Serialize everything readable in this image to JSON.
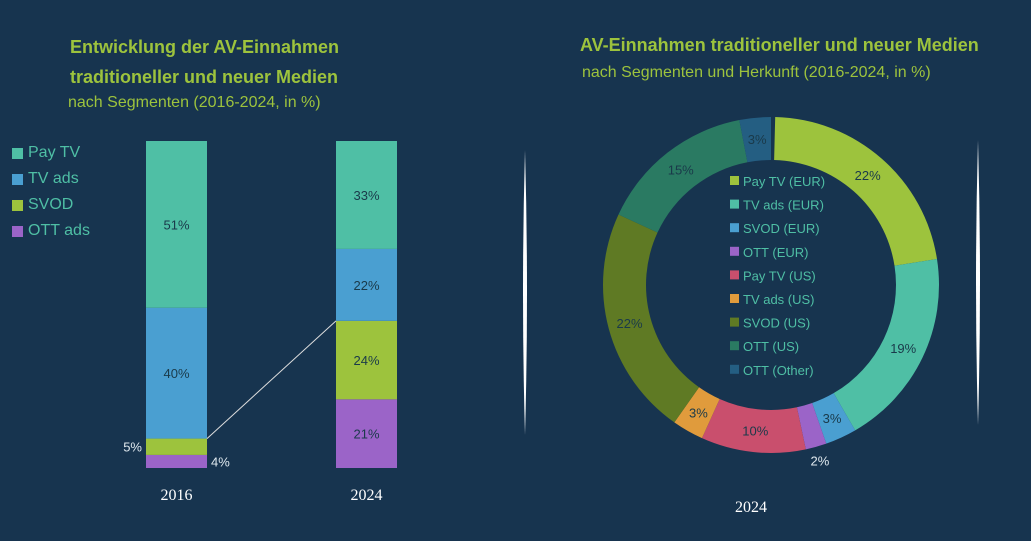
{
  "chart_data": [
    {
      "type": "bar",
      "stacked": true,
      "title": "Entwicklung der AV-Einnahmen traditioneller und neuer Medien",
      "subtitle": "nach Segmenten (2016-2024, in %)",
      "categories": [
        "2016",
        "2024"
      ],
      "series": [
        {
          "name": "OTT ads",
          "color": "#9b64c8",
          "values": [
            4,
            21
          ],
          "labels": [
            "4%",
            "21%"
          ]
        },
        {
          "name": "SVOD",
          "color": "#9dc33d",
          "values": [
            5,
            24
          ],
          "labels": [
            "5%",
            "24%"
          ]
        },
        {
          "name": "TV ads",
          "color": "#4a9fd1",
          "values": [
            40,
            22
          ],
          "labels": [
            "40%",
            "22%"
          ]
        },
        {
          "name": "Pay TV",
          "color": "#4fbfa5",
          "values": [
            51,
            33
          ],
          "labels": [
            "51%",
            "33%"
          ]
        }
      ],
      "legend_order": [
        "Pay TV",
        "TV ads",
        "SVOD",
        "OTT ads"
      ],
      "legend_placement": "left",
      "grid": false
    },
    {
      "type": "pie",
      "donut": true,
      "title": "AV-Einnahmen traditioneller und neuer Medien",
      "subtitle": "nach Segmenten und Herkunft (2016-2024, in %)",
      "xlabel": "2024",
      "legend_placement": "center",
      "slices": [
        {
          "name": "Pay TV (EUR)",
          "value": 22,
          "label": "22%",
          "color": "#9dc33d"
        },
        {
          "name": "TV ads (EUR)",
          "value": 19,
          "label": "19%",
          "color": "#4fbfa5"
        },
        {
          "name": "SVOD (EUR)",
          "value": 3,
          "label": "3%",
          "color": "#4a9fd1"
        },
        {
          "name": "OTT (EUR)",
          "value": 2,
          "label": "2%",
          "color": "#9b64c8"
        },
        {
          "name": "Pay TV (US)",
          "value": 10,
          "label": "10%",
          "color": "#c94f6d"
        },
        {
          "name": "TV ads (US)",
          "value": 3,
          "label": "3%",
          "color": "#e09b3c"
        },
        {
          "name": "SVOD (US)",
          "value": 22,
          "label": "22%",
          "color": "#5f7a24"
        },
        {
          "name": "OTT (US)",
          "value": 15,
          "label": "15%",
          "color": "#2a7a62"
        },
        {
          "name": "OTT (Other)",
          "value": 3,
          "label": "3%",
          "color": "#245e82"
        }
      ]
    }
  ]
}
